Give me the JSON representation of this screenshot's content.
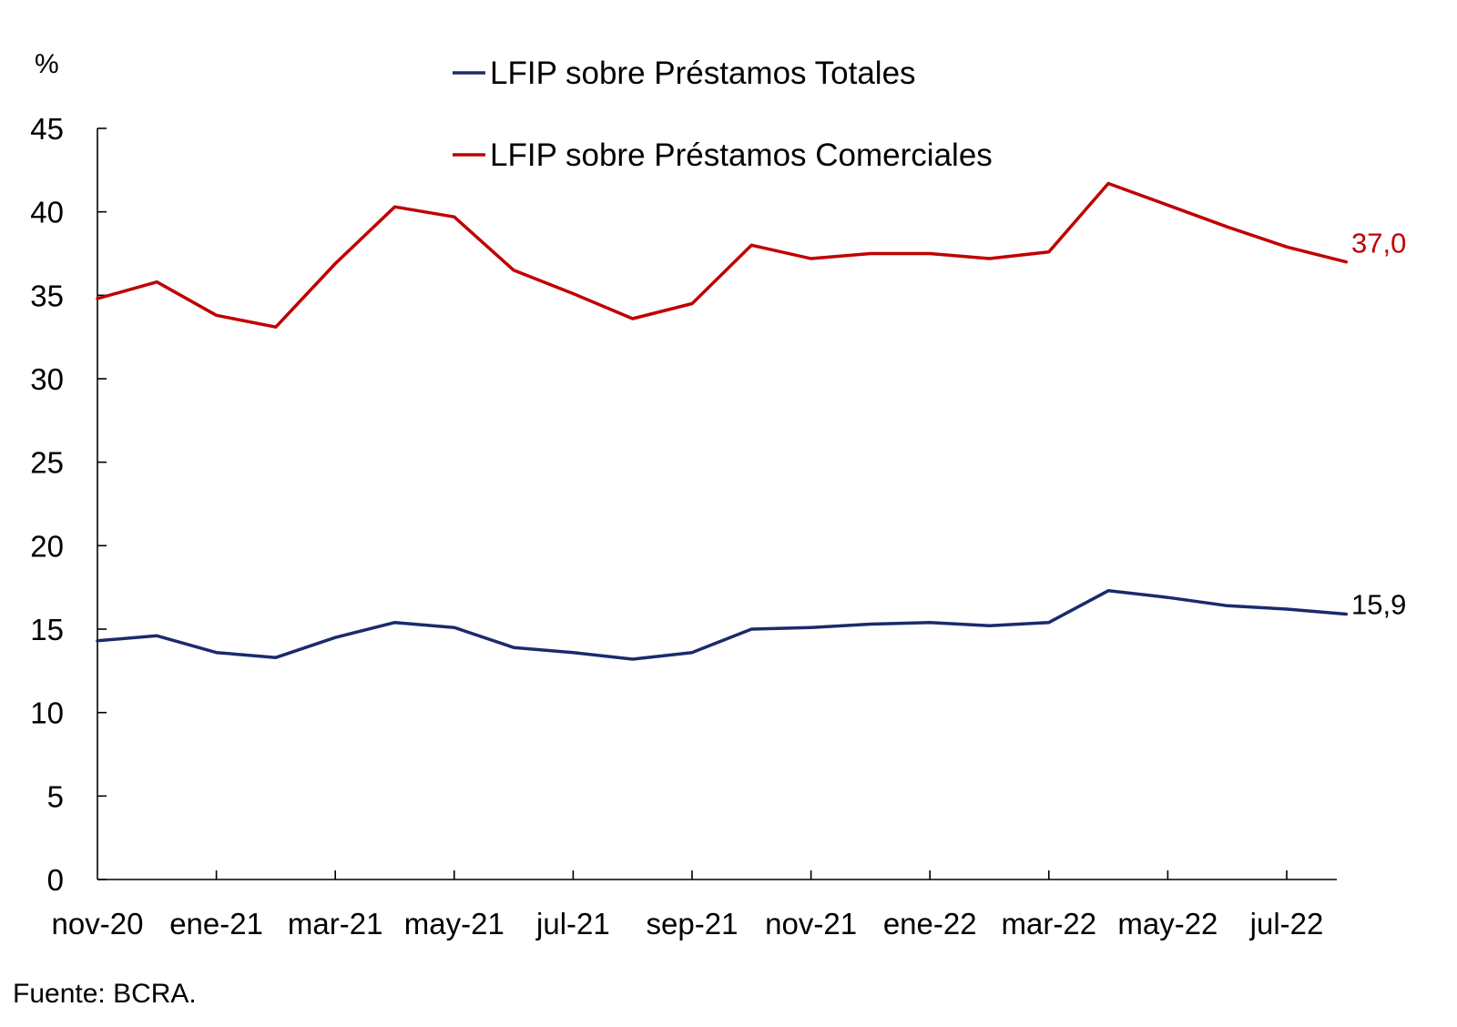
{
  "chart_data": {
    "type": "line",
    "unit_label": "%",
    "x": [
      "nov-20",
      "dic-20",
      "ene-21",
      "feb-21",
      "mar-21",
      "abr-21",
      "may-21",
      "jun-21",
      "jul-21",
      "ago-21",
      "sep-21",
      "oct-21",
      "nov-21",
      "dic-21",
      "ene-22",
      "feb-22",
      "mar-22",
      "abr-22",
      "may-22",
      "jun-22",
      "jul-22",
      "ago-22"
    ],
    "x_tick_labels": [
      "nov-20",
      "ene-21",
      "mar-21",
      "may-21",
      "jul-21",
      "sep-21",
      "nov-21",
      "ene-22",
      "mar-22",
      "may-22",
      "jul-22"
    ],
    "ylim": [
      0,
      45
    ],
    "y_ticks": [
      0,
      5,
      10,
      15,
      20,
      25,
      30,
      35,
      40,
      45
    ],
    "series": [
      {
        "name": "LFIP sobre Préstamos Totales",
        "color": "#1b2a6b",
        "values": [
          14.3,
          14.6,
          13.6,
          13.3,
          14.5,
          15.4,
          15.1,
          13.9,
          13.6,
          13.2,
          13.6,
          15.0,
          15.1,
          15.3,
          15.4,
          15.2,
          15.4,
          17.3,
          16.9,
          16.4,
          16.2,
          15.9
        ],
        "end_label": "15,9"
      },
      {
        "name": "LFIP sobre Préstamos Comerciales",
        "color": "#c00000",
        "values": [
          34.8,
          35.8,
          33.8,
          33.1,
          36.9,
          40.3,
          39.7,
          36.5,
          35.1,
          33.6,
          34.5,
          38.0,
          37.2,
          37.5,
          37.5,
          37.2,
          37.6,
          41.7,
          40.4,
          39.1,
          37.9,
          37.0
        ],
        "end_label": "37,0"
      }
    ],
    "legend_position": "top-center",
    "grid": false
  },
  "source_note": "Fuente: BCRA."
}
